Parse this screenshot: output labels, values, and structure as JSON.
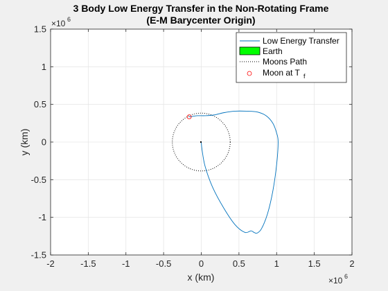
{
  "chart_data": {
    "type": "line",
    "title_line1": "3 Body Low Energy Transfer in the Non-Rotating Frame",
    "title_line2": "(E-M Barycenter Origin)",
    "xlabel": "x (km)",
    "ylabel": "y (km)",
    "x_exponent": "×10",
    "x_exponent_power": "6",
    "y_exponent": "×10",
    "y_exponent_power": "6",
    "xlim": [
      -2,
      2
    ],
    "ylim": [
      -1.5,
      1.5
    ],
    "x_ticks": [
      -2,
      -1.5,
      -1,
      -0.5,
      0,
      0.5,
      1,
      1.5,
      2
    ],
    "y_ticks": [
      -1.5,
      -1,
      -0.5,
      0,
      0.5,
      1,
      1.5
    ],
    "x_tick_labels": [
      "-2",
      "-1.5",
      "-1",
      "-0.5",
      "0",
      "0.5",
      "1",
      "1.5",
      "2"
    ],
    "y_tick_labels": [
      "-1.5",
      "-1",
      "-0.5",
      "0",
      "0.5",
      "1",
      "1.5"
    ],
    "grid": true,
    "legend_position": "top-right",
    "series": [
      {
        "name": "Low Energy Transfer",
        "style": "line",
        "color": "#0072BD",
        "x": [
          0,
          0.01,
          0.05,
          0.15,
          0.3,
          0.45,
          0.58,
          0.66,
          0.7,
          0.74,
          0.8,
          0.88,
          0.95,
          1.0,
          1.02,
          1.0,
          0.95,
          0.86,
          0.74,
          0.6,
          0.45,
          0.3,
          0.17,
          0.05,
          -0.05,
          -0.12,
          -0.16
        ],
        "y": [
          0,
          -0.1,
          -0.32,
          -0.6,
          -0.88,
          -1.1,
          -1.2,
          -1.18,
          -1.2,
          -1.21,
          -1.15,
          -0.95,
          -0.65,
          -0.3,
          0.0,
          0.12,
          0.25,
          0.35,
          0.4,
          0.41,
          0.41,
          0.39,
          0.36,
          0.35,
          0.35,
          0.34,
          0.335
        ]
      },
      {
        "name": "Earth",
        "style": "marker",
        "color": "#00ff00",
        "x": [
          -0.005
        ],
        "y": [
          0
        ]
      },
      {
        "name": "Moons Path",
        "style": "dotted",
        "color": "#000000",
        "center": [
          0,
          0
        ],
        "radius": 0.384
      },
      {
        "name": "Moon at T_f",
        "style": "circle-marker",
        "color": "#ff0000",
        "x": [
          -0.16
        ],
        "y": [
          0.335
        ]
      }
    ],
    "legend": [
      "Low Energy Transfer",
      "Earth",
      "Moons Path",
      "Moon at T",
      "f"
    ]
  }
}
